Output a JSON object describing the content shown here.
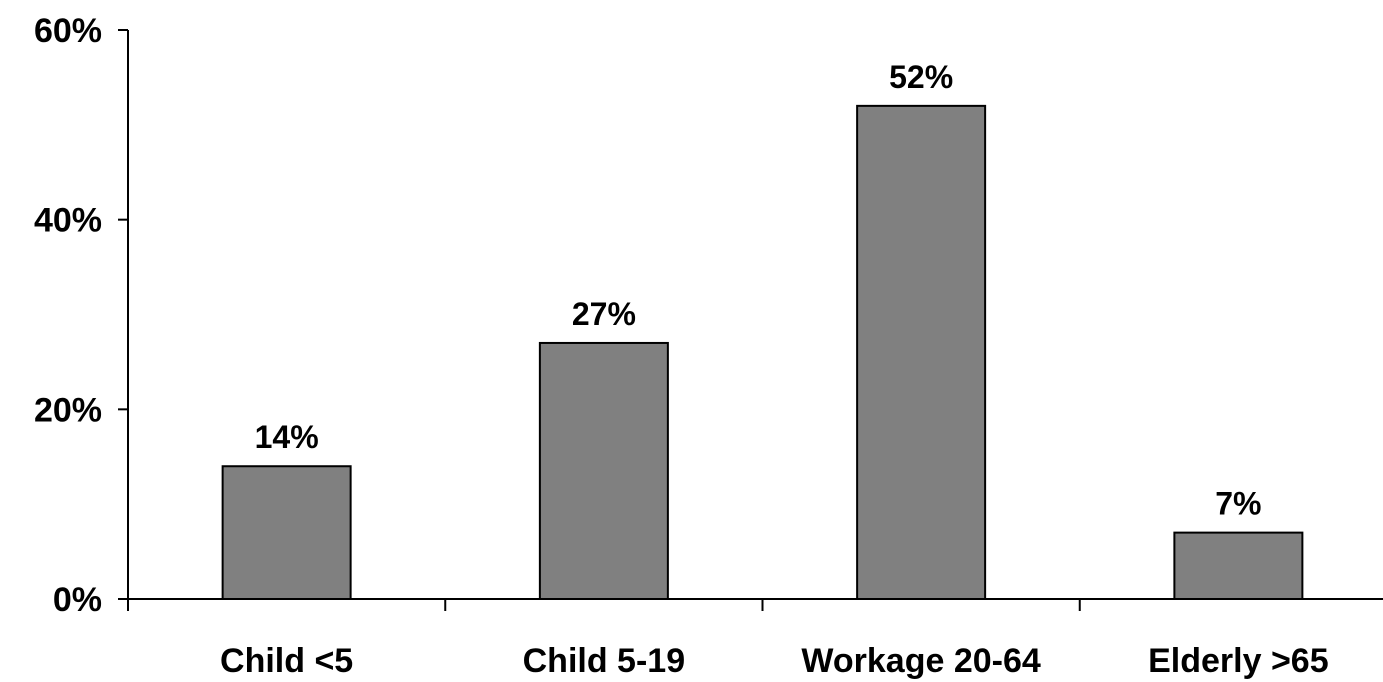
{
  "chart_data": {
    "type": "bar",
    "title": "",
    "xlabel": "",
    "ylabel": "",
    "categories": [
      "Child <5",
      "Child 5-19",
      "Workage 20-64",
      "Elderly >65"
    ],
    "values": [
      14,
      27,
      52,
      7
    ],
    "data_labels": [
      "14%",
      "27%",
      "52%",
      "7%"
    ],
    "ylim": [
      0,
      60
    ],
    "yticks": [
      0,
      20,
      40,
      60
    ],
    "ytick_labels": [
      "0%",
      "20%",
      "40%",
      "60%"
    ],
    "grid": false,
    "legend": "none",
    "bar_color": "#808080",
    "bar_edge_color": "#000000"
  }
}
